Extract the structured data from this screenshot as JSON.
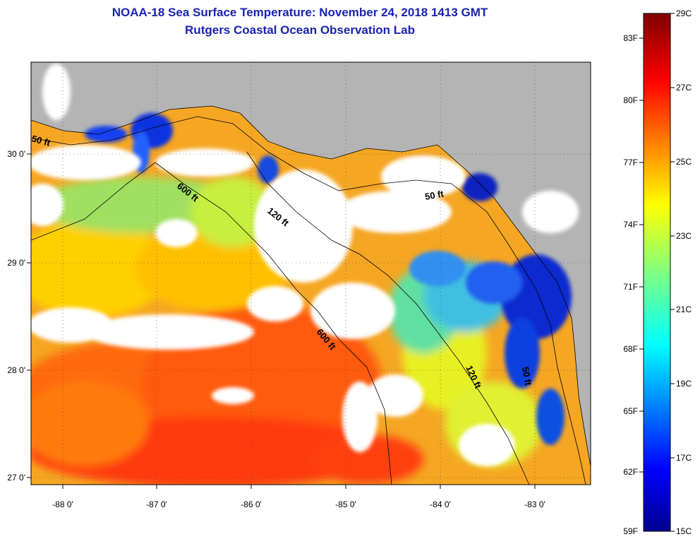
{
  "title": {
    "line1": "NOAA-18 Sea Surface Temperature:  November 24, 2018 1413 GMT",
    "line2": "Rutgers Coastal Ocean Observation Lab"
  },
  "map": {
    "lon_labels": [
      "-88 0'",
      "-87 0'",
      "-86 0'",
      "-85 0'",
      "-84 0'",
      "-83 0'"
    ],
    "lat_labels": [
      "30 0'",
      "29 0'",
      "28 0'",
      "27 0'"
    ],
    "depth_labels": [
      "50 ft",
      "600 ft",
      "120 ft",
      "50 ft",
      "600 ft",
      "120 ft",
      "50 ft"
    ]
  },
  "colorbar": {
    "fahrenheit": [
      "83F",
      "80F",
      "77F",
      "74F",
      "71F",
      "68F",
      "65F",
      "62F",
      "59F"
    ],
    "celsius": [
      "29C",
      "27C",
      "25C",
      "23C",
      "21C",
      "19C",
      "17C",
      "15C"
    ]
  },
  "colors": {
    "title": "#1a23b0",
    "land": "#b4b4b4",
    "cloud": "#ffffff"
  }
}
